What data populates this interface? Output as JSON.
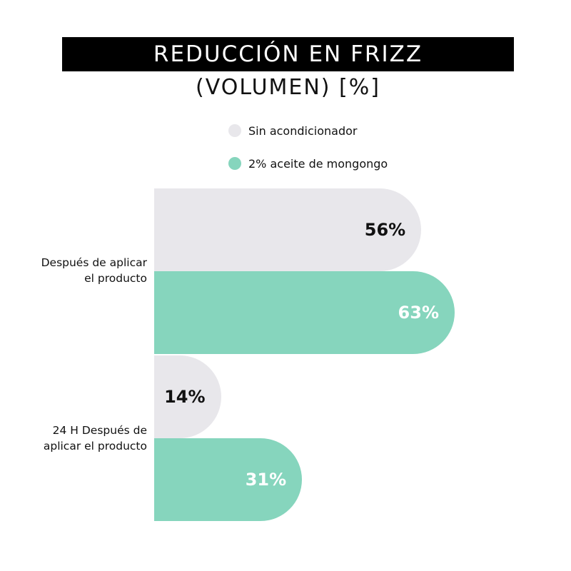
{
  "chart_data": {
    "type": "bar",
    "orientation": "horizontal",
    "title": "REDUCCIÓN EN FRIZZ",
    "subtitle": "(VOLUMEN) [%]",
    "categories": [
      "Después de aplicar el producto",
      "24 H Después de aplicar el producto"
    ],
    "category_lines": [
      [
        "Después de aplicar",
        "el producto"
      ],
      [
        "24 H Después de",
        "aplicar el producto"
      ]
    ],
    "series": [
      {
        "name": "Sin acondicionador",
        "values": [
          56,
          14
        ],
        "value_labels": [
          "56%",
          "14%"
        ],
        "color": "#E8E7EB",
        "label_color": "#111111"
      },
      {
        "name": "2% aceite de mongongo",
        "values": [
          63,
          31
        ],
        "value_labels": [
          "63%",
          "31%"
        ],
        "color": "#86D5BD",
        "label_color": "#ffffff"
      }
    ],
    "xlim": [
      0,
      63
    ],
    "grid": false,
    "legend_position": "top"
  }
}
